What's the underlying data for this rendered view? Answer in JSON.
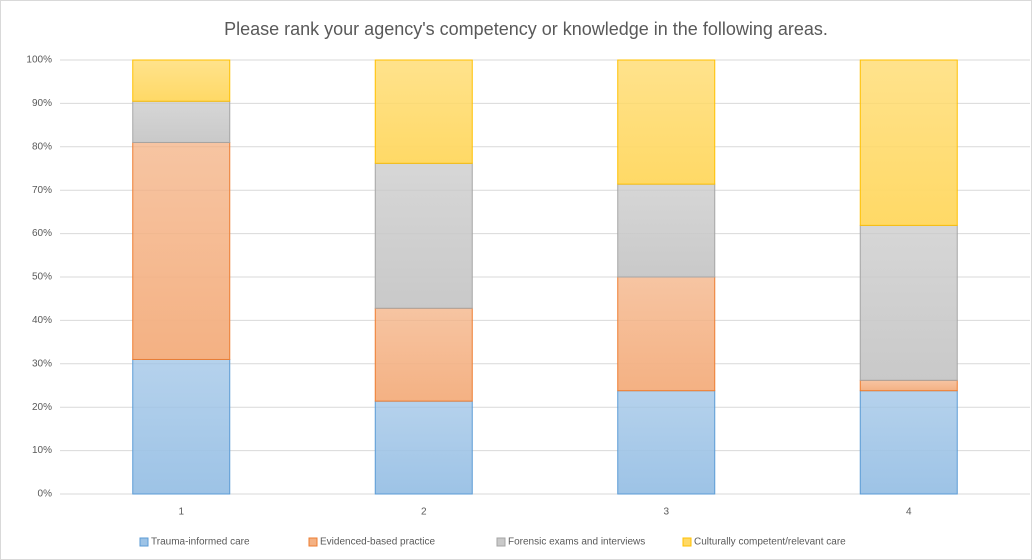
{
  "chart_data": {
    "type": "stacked_bar",
    "title": "Please rank your agency's competency or knowledge in the following areas.",
    "categories": [
      "1",
      "2",
      "3",
      "4"
    ],
    "series": [
      {
        "name": "Trauma-informed care",
        "color": "#9dc3e6",
        "values": [
          31,
          21.4,
          23.8,
          23.8
        ]
      },
      {
        "name": "Evidenced-based practice",
        "color": "#f4b183",
        "values": [
          50,
          21.4,
          26.2,
          2.4
        ]
      },
      {
        "name": "Forensic exams and interviews",
        "color": "#c9c9c9",
        "values": [
          9.5,
          33.4,
          21.4,
          35.7
        ]
      },
      {
        "name": "Culturally competent/relevant care",
        "color": "#ffd966",
        "values": [
          9.5,
          23.8,
          28.6,
          38.1
        ]
      }
    ],
    "ylim": [
      0,
      100
    ],
    "yticks": [
      {
        "value": 0,
        "label": "0%"
      },
      {
        "value": 10,
        "label": "10%"
      },
      {
        "value": 20,
        "label": "20%"
      },
      {
        "value": 30,
        "label": "30%"
      },
      {
        "value": 40,
        "label": "40%"
      },
      {
        "value": 50,
        "label": "50%"
      },
      {
        "value": 60,
        "label": "60%"
      },
      {
        "value": 70,
        "label": "70%"
      },
      {
        "value": 80,
        "label": "80%"
      },
      {
        "value": 90,
        "label": "90%"
      },
      {
        "value": 100,
        "label": "100%"
      }
    ],
    "grid": true,
    "legend": "bottom"
  }
}
